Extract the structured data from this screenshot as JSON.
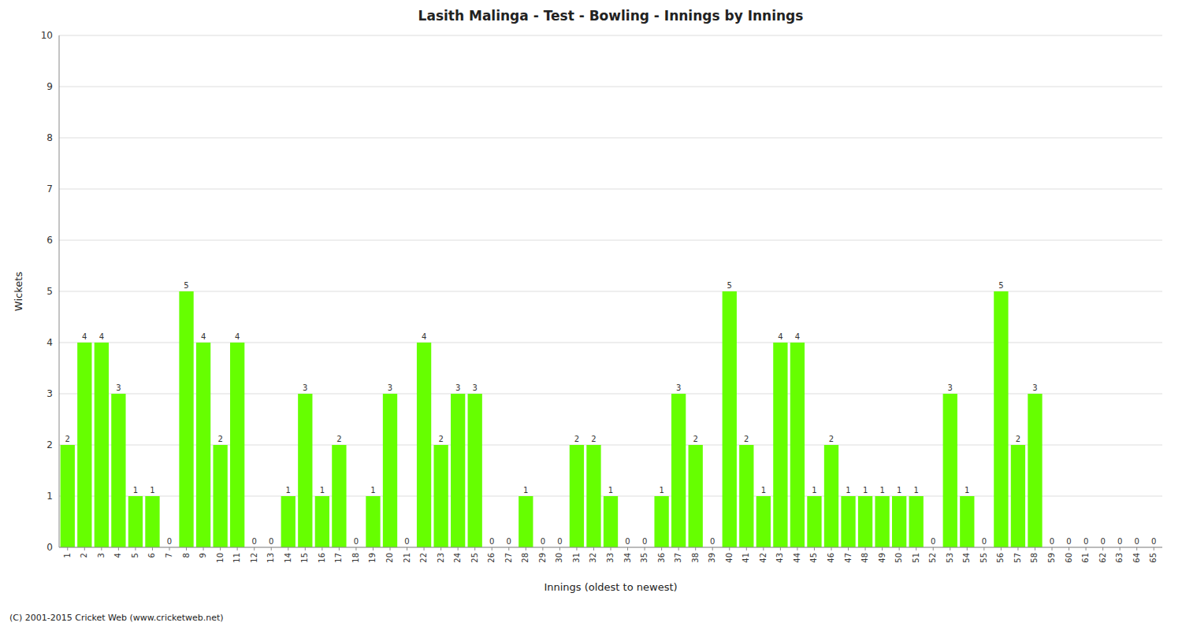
{
  "chart_data": {
    "type": "bar",
    "title": "Lasith Malinga - Test - Bowling - Innings by Innings",
    "xlabel": "Innings (oldest to newest)",
    "ylabel": "Wickets",
    "annotations": [
      "(C) 2001-2015 Cricket Web (www.cricketweb.net)"
    ],
    "categories": [
      "1",
      "2",
      "3",
      "4",
      "5",
      "6",
      "7",
      "8",
      "9",
      "10",
      "11",
      "12",
      "13",
      "14",
      "15",
      "16",
      "17",
      "18",
      "19",
      "20",
      "21",
      "22",
      "23",
      "24",
      "25",
      "26",
      "27",
      "28",
      "29",
      "30",
      "31",
      "32",
      "33",
      "34",
      "35",
      "36",
      "37",
      "38",
      "39",
      "40",
      "41",
      "42",
      "43",
      "44",
      "45",
      "46",
      "47",
      "48",
      "49",
      "50",
      "51",
      "52",
      "53",
      "54",
      "55",
      "56",
      "57",
      "58",
      "59",
      "60",
      "61",
      "62",
      "63",
      "64",
      "65"
    ],
    "values": [
      2,
      4,
      4,
      3,
      1,
      1,
      0,
      5,
      4,
      2,
      4,
      0,
      0,
      1,
      3,
      1,
      2,
      0,
      1,
      3,
      0,
      4,
      2,
      3,
      3,
      0,
      0,
      1,
      0,
      0,
      2,
      2,
      1,
      0,
      0,
      1,
      3,
      2,
      0,
      5,
      2,
      1,
      4,
      4,
      1,
      2,
      1,
      1,
      1,
      1,
      1,
      0,
      3,
      1,
      0,
      5,
      2,
      3,
      0,
      0,
      0,
      0,
      0,
      0,
      0
    ],
    "color": "#66ff00",
    "ylim": [
      0,
      10
    ],
    "yticks": [
      0,
      1,
      2,
      3,
      4,
      5,
      6,
      7,
      8,
      9,
      10
    ],
    "grid": true,
    "data_labels": true
  }
}
